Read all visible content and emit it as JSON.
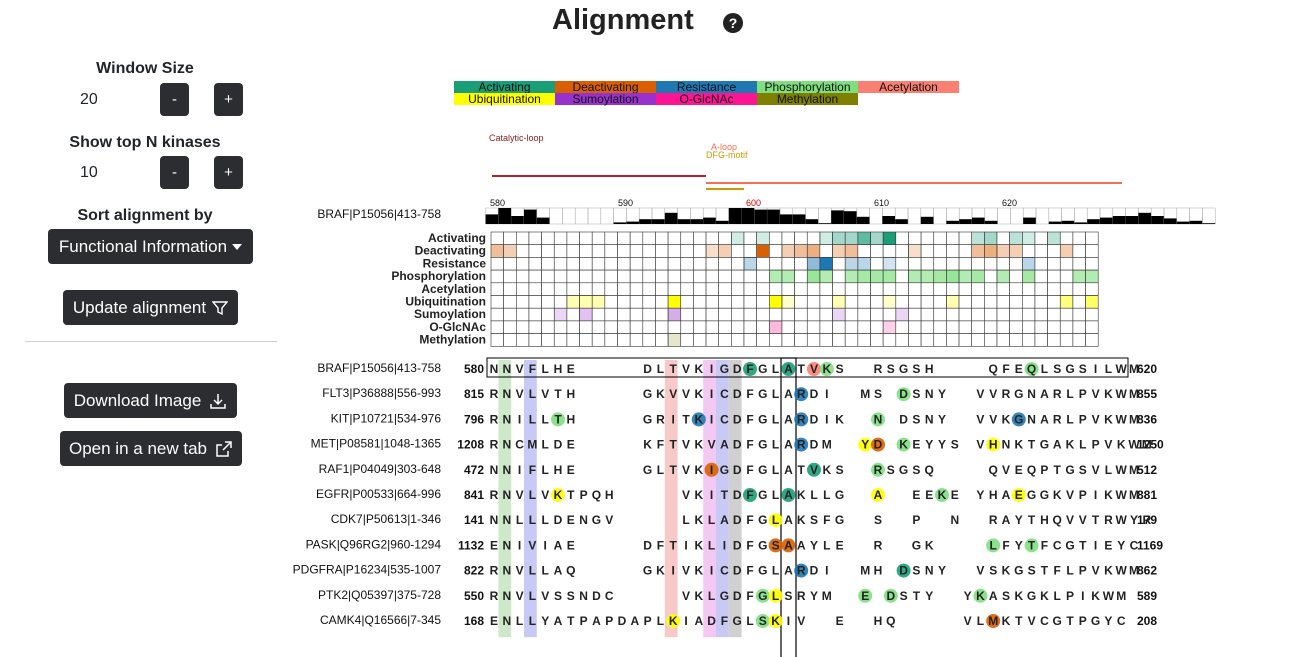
{
  "header": {
    "title": "Alignment",
    "help_icon": "?"
  },
  "sidebar": {
    "window_size_label": "Window Size",
    "window_size_value": "20",
    "topn_label": "Show top N kinases",
    "topn_value": "10",
    "minus": "-",
    "plus": "+",
    "sort_label": "Sort alignment by",
    "sort_value": "Functional Information",
    "update_label": "Update alignment",
    "download_label": "Download Image",
    "open_tab_label": "Open in a new tab"
  },
  "legend": [
    {
      "label": "Activating",
      "color": "#1a9e77"
    },
    {
      "label": "Deactivating",
      "color": "#d95f02"
    },
    {
      "label": "Resistance",
      "color": "#1f78b4"
    },
    {
      "label": "Phosphorylation",
      "color": "#7fdf7f"
    },
    {
      "label": "Acetylation",
      "color": "#fa8072"
    },
    {
      "label": "Ubiquitination",
      "color": "#ffff00"
    },
    {
      "label": "Sumoylation",
      "color": "#9932cc"
    },
    {
      "label": "O-GlcNAc",
      "color": "#ff1493"
    },
    {
      "label": "Methylation",
      "color": "#808000"
    }
  ],
  "regions": {
    "catalytic": "Catalytic-loop",
    "aloop": "A-loop",
    "dfg": "DFG-motif"
  },
  "reference": {
    "label": "BRAF|P15056|413-758",
    "ticks": [
      "580",
      "590",
      "600",
      "610",
      "620"
    ],
    "heights": [
      0.6,
      1,
      0.5,
      0.9,
      0.4,
      0,
      0,
      0,
      0,
      0,
      0.1,
      0.15,
      0.3,
      0.3,
      0.7,
      0.3,
      0.3,
      0.4,
      0.2,
      1,
      1,
      0.9,
      0.9,
      0.6,
      0.6,
      0.3,
      0.05,
      0.85,
      0.8,
      0.45,
      0,
      0.5,
      0.3,
      0,
      0.45,
      0,
      0.2,
      0.3,
      0.4,
      0.2,
      0,
      0,
      0.4,
      0,
      0.15,
      0.2,
      0.1,
      0.3,
      0.4,
      0.5,
      0.5,
      0.7,
      0.5,
      0.35,
      0.15,
      0.2,
      0.05
    ]
  },
  "heatmap": {
    "rows": [
      "Activating",
      "Deactivating",
      "Resistance",
      "Phosphorylation",
      "Acetylation",
      "Ubiquitination",
      "Sumoylation",
      "O-GlcNAc",
      "Methylation"
    ]
  },
  "alignment": [
    {
      "name": "BRAF|P15056|413-758",
      "start": "580",
      "end": "620",
      "seq": "NNVFLHE     DLTVKIGDFGLATVKS  RSGSH    QFEQLSGSILWM"
    },
    {
      "name": "FLT3|P36888|556-993",
      "start": "815",
      "end": "855",
      "seq": "RNVLVTH     GKVVKICDFGLARDI  MS DSNY  VVRGNARLPVKWM"
    },
    {
      "name": "KIT|P10721|534-976",
      "start": "796",
      "end": "836",
      "seq": "RNILLTH     GRITKICDFGLARDIK  N DSNY  VVKGNARLPVKWM"
    },
    {
      "name": "MET|P08581|1048-1365",
      "start": "1208",
      "end": "1250",
      "seq": "RNCMLDE     KFTVKVADFGLARDM  YD KEYYS VHNKTGAKLPVKWM"
    },
    {
      "name": "RAF1|P04049|303-648",
      "start": "472",
      "end": "512",
      "seq": "NNIFLHE     GLTVKIGDFGLATVKS  RSGSQ    QVEQPTGSVLWM"
    },
    {
      "name": "EGFR|P00533|664-996",
      "start": "841",
      "end": "881",
      "seq": "RNVLVKTPQH     VKITDFGLAKLLG  A  EEKE YHAEGGKVPIKWM"
    },
    {
      "name": "CDK7|P50613|1-346",
      "start": "141",
      "end": "179",
      "seq": "NNLLLDENGV     LKLADFGLAKSFG  S  P  N  RAYTHQVVTRWYR"
    },
    {
      "name": "PASK|Q96RG2|960-1294",
      "start": "1132",
      "end": "1169",
      "seq": "ENIVIAE     DFTIKLIDFGSAAYLE  R  GK    LFYTFCGTIEYC"
    },
    {
      "name": "PDGFRA|P16234|535-1007",
      "start": "822",
      "end": "862",
      "seq": "RNVLLAQ     GKIVKICDFGLARDI  MH DSNY  VSKGSTFLPVKWM"
    },
    {
      "name": "PTK2|Q05397|375-728",
      "start": "550",
      "end": "589",
      "seq": "RNVLVSSNDC     VKLGDFGLSRYM  E DSTY  YKASKGKLPIKWM"
    },
    {
      "name": "CAMK4|Q16566|7-345",
      "start": "168",
      "end": "208",
      "seq": "ENLLYATPAPDAPLKIADFGLSKIV  E  HQ     VLMKTVCGTPGYC"
    }
  ]
}
